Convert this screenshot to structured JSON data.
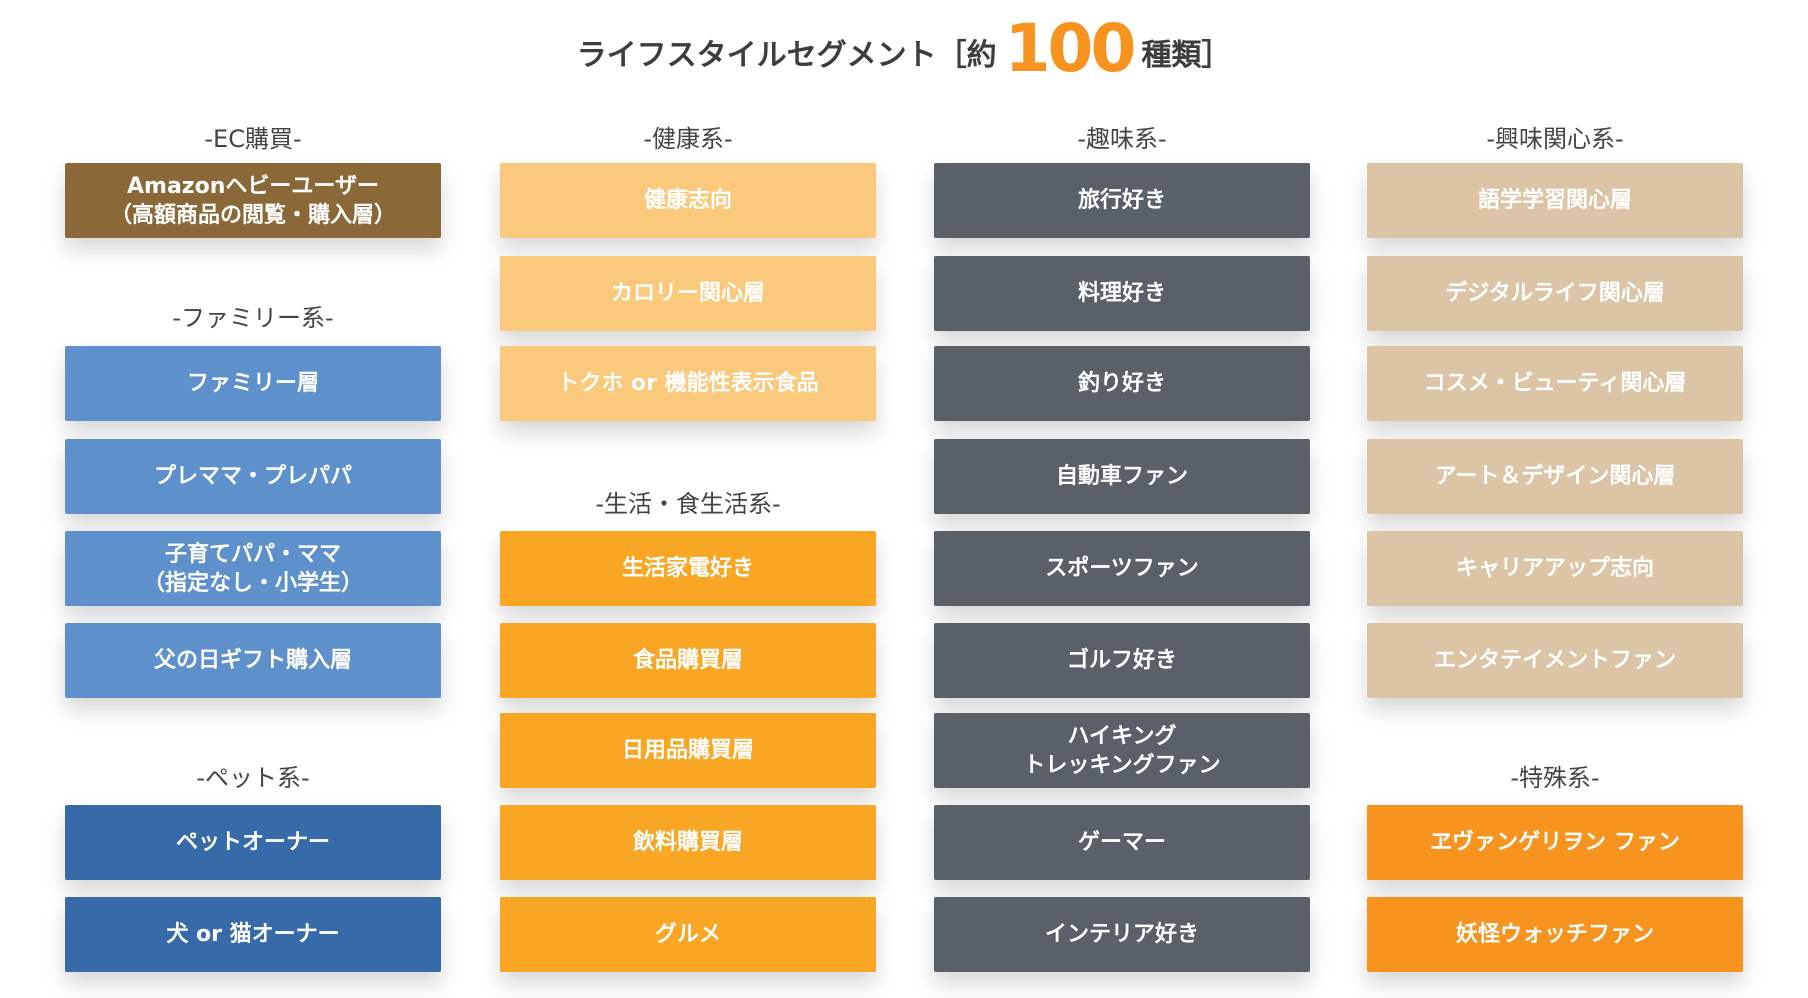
{
  "title": {
    "prefix": "ライフスタイルセグメント［約",
    "number": "100",
    "suffix": "種類］"
  },
  "colors": {
    "ec": "#8a6838",
    "health": "#fbc97b",
    "hobby": "#5a6068",
    "interest": "#dcc5a6",
    "family": "#5e91cc",
    "pet": "#366aa9",
    "life": "#f8a623",
    "special": "#f7941f",
    "accent": "#f7941f"
  },
  "groups": [
    {
      "key": "ec",
      "heading": "-EC購買-",
      "items": [
        "Amazonヘビーユーザー\n（高額商品の閲覧・購入層）"
      ]
    },
    {
      "key": "family",
      "heading": "-ファミリー系-",
      "items": [
        "ファミリー層",
        "プレママ・プレパパ",
        "子育てパパ・ママ\n（指定なし・小学生）",
        "父の日ギフト購入層"
      ]
    },
    {
      "key": "pet",
      "heading": "-ペット系-",
      "items": [
        "ペットオーナー",
        "犬 or 猫オーナー"
      ]
    },
    {
      "key": "health",
      "heading": "-健康系-",
      "items": [
        "健康志向",
        "カロリー関心層",
        "トクホ or 機能性表示食品"
      ]
    },
    {
      "key": "life",
      "heading": "-生活・食生活系-",
      "items": [
        "生活家電好き",
        "食品購買層",
        "日用品購買層",
        "飲料購買層",
        "グルメ"
      ]
    },
    {
      "key": "hobby",
      "heading": "-趣味系-",
      "items": [
        "旅行好き",
        "料理好き",
        "釣り好き",
        "自動車ファン",
        "スポーツファン",
        "ゴルフ好き",
        "ハイキング\nトレッキングファン",
        "ゲーマー",
        "インテリア好き"
      ]
    },
    {
      "key": "interest",
      "heading": "-興味関心系-",
      "items": [
        "語学学習関心層",
        "デジタルライフ関心層",
        "コスメ・ビューティ関心層",
        "アート＆デザイン関心層",
        "キャリアアップ志向",
        "エンタテイメントファン"
      ]
    },
    {
      "key": "special",
      "heading": "-特殊系-",
      "items": [
        "ヱヴァンゲリヲン ファン",
        "妖怪ウォッチファン"
      ]
    }
  ]
}
